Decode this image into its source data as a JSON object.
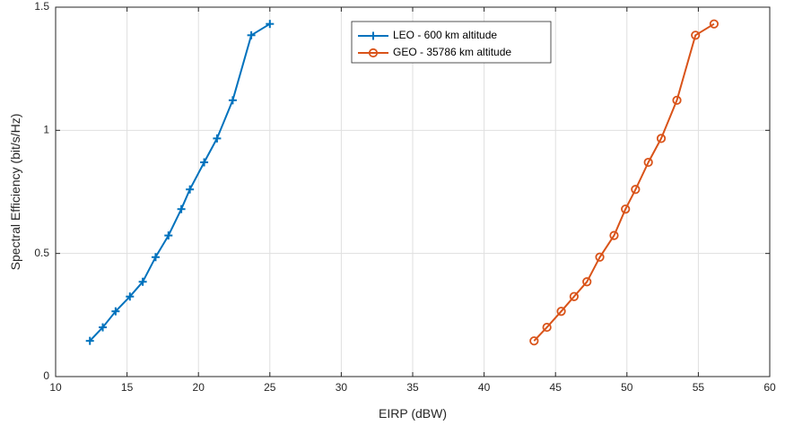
{
  "chart_data": {
    "type": "line",
    "xlabel": "EIRP (dBW)",
    "ylabel": "Spectral Efficiency (bit/s/Hz)",
    "xlim": [
      10,
      60
    ],
    "ylim": [
      0,
      1.5
    ],
    "xticks": [
      10,
      15,
      20,
      25,
      30,
      35,
      40,
      45,
      50,
      55,
      60
    ],
    "yticks": [
      0,
      0.5,
      1,
      1.5
    ],
    "xtick_labels": [
      "10",
      "15",
      "20",
      "25",
      "30",
      "35",
      "40",
      "45",
      "50",
      "55",
      "60"
    ],
    "ytick_labels": [
      "0",
      "0.5",
      "1",
      "1.5"
    ],
    "grid": true,
    "legend_position": "top-center",
    "series": [
      {
        "name": "LEO - 600 km altitude",
        "color": "#0072BD",
        "marker": "plus",
        "x": [
          12.4,
          13.3,
          14.2,
          15.2,
          16.1,
          17.0,
          17.9,
          18.8,
          19.4,
          20.4,
          21.3,
          22.4,
          23.7,
          25.0
        ],
        "y": [
          0.145,
          0.2,
          0.265,
          0.325,
          0.385,
          0.485,
          0.573,
          0.68,
          0.76,
          0.87,
          0.967,
          1.122,
          1.386,
          1.432
        ]
      },
      {
        "name": "GEO - 35786 km altitude",
        "color": "#D95319",
        "marker": "circle",
        "x": [
          43.5,
          44.4,
          45.4,
          46.3,
          47.2,
          48.1,
          49.1,
          49.9,
          50.6,
          51.5,
          52.4,
          53.5,
          54.8,
          56.1
        ],
        "y": [
          0.145,
          0.2,
          0.265,
          0.325,
          0.385,
          0.485,
          0.573,
          0.68,
          0.76,
          0.87,
          0.967,
          1.122,
          1.386,
          1.432
        ]
      }
    ]
  }
}
